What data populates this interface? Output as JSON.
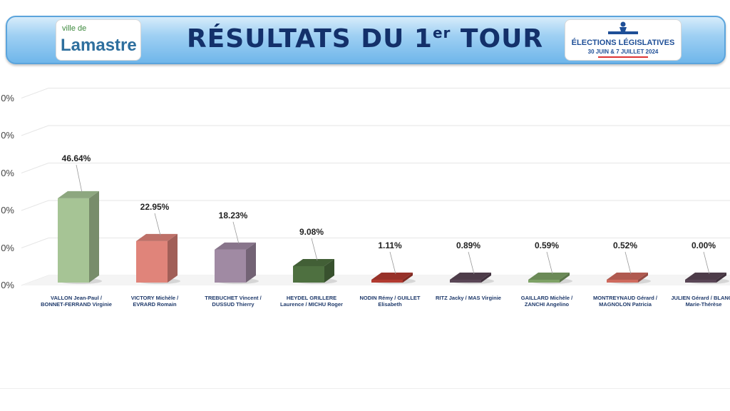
{
  "header": {
    "title_main": "RÉSULTATS DU 1",
    "title_sup": "er",
    "title_end": " TOUR",
    "logo_left_small": "ville de",
    "logo_left_name": "Lamastre",
    "logo_right_title": "ÉLECTIONS LÉGISLATIVES",
    "logo_right_sub": "30 JUIN & 7 JUILLET 2024"
  },
  "chart_data": {
    "type": "bar",
    "categories": [
      "VALLON Jean-Paul / BONNET-FERRAND Virginie",
      "VICTORY Michèle / EVRARD Romain",
      "TREBUCHET Vincent / DUSSUD Thierry",
      "HEYDEL GRILLERE Laurence / MICHU Roger",
      "NODIN Rémy / GUILLET Elisabeth",
      "RITZ Jacky / MAS Virginie",
      "GAILLARD Michèle / ZANCHI Angelino",
      "MONTREYNAUD Gérard / MAGNOLON Patricia",
      "JULIEN Gérard / BLANCA Marie-Thérèse"
    ],
    "values": [
      46.64,
      22.95,
      18.23,
      9.08,
      1.11,
      0.89,
      0.59,
      0.52,
      0.0
    ],
    "value_labels": [
      "46.64%",
      "22.95%",
      "18.23%",
      "9.08%",
      "1.11%",
      "0.89%",
      "0.59%",
      "0.52%",
      "0.00%"
    ],
    "tick_labels": [
      "0%",
      "0%",
      "0%",
      "0%",
      "0%",
      "0%"
    ],
    "ylim": [
      0,
      100
    ],
    "grid": true,
    "colors": [
      "#a6c495",
      "#e0847a",
      "#a08aa3",
      "#4e7040",
      "#b23a30",
      "#5a4656",
      "#7ea266",
      "#cf6a5e",
      "#5a4656"
    ]
  }
}
